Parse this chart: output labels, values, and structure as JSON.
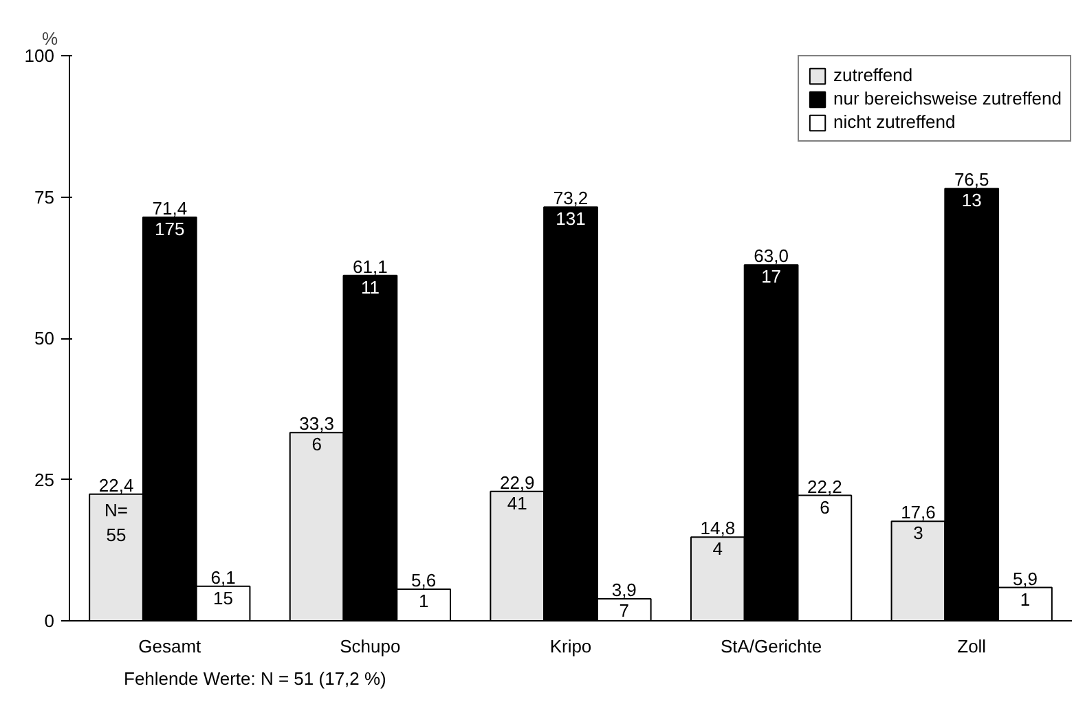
{
  "chart_data": {
    "type": "bar",
    "ylabel": "%",
    "categories": [
      "Gesamt",
      "Schupo",
      "Kripo",
      "StA/Gerichte",
      "Zoll"
    ],
    "ylim": [
      0,
      100
    ],
    "yticks": [
      0,
      25,
      50,
      75,
      100
    ],
    "grid": false,
    "legend": "top right",
    "series": [
      {
        "name": "zutreffend",
        "color": "#e6e6e6",
        "values": [
          22.4,
          33.3,
          22.9,
          14.8,
          17.6
        ],
        "value_labels": [
          "22,4",
          "33,3",
          "22,9",
          "14,8",
          "17,6"
        ]
      },
      {
        "name": "nur bereichsweise zutreffend",
        "color": "#000000",
        "values": [
          71.4,
          61.1,
          73.2,
          63.0,
          76.5
        ],
        "value_labels": [
          "71,4",
          "61,1",
          "73,2",
          "63,0",
          "76,5"
        ]
      },
      {
        "name": "nicht zutreffend",
        "color": "#ffffff",
        "values": [
          6.1,
          5.6,
          3.9,
          22.2,
          5.9
        ],
        "value_labels": [
          "6,1",
          "5,6",
          "3,9",
          "22,2",
          "5,9"
        ]
      }
    ],
    "annotations": [
      "N=\n55",
      "6",
      "41",
      "4",
      "3",
      "175",
      "11",
      "131",
      "17",
      "13",
      "15",
      "1",
      "7",
      "6",
      "1",
      "Fehlende Werte: N = 51 (17,2 %)"
    ]
  }
}
